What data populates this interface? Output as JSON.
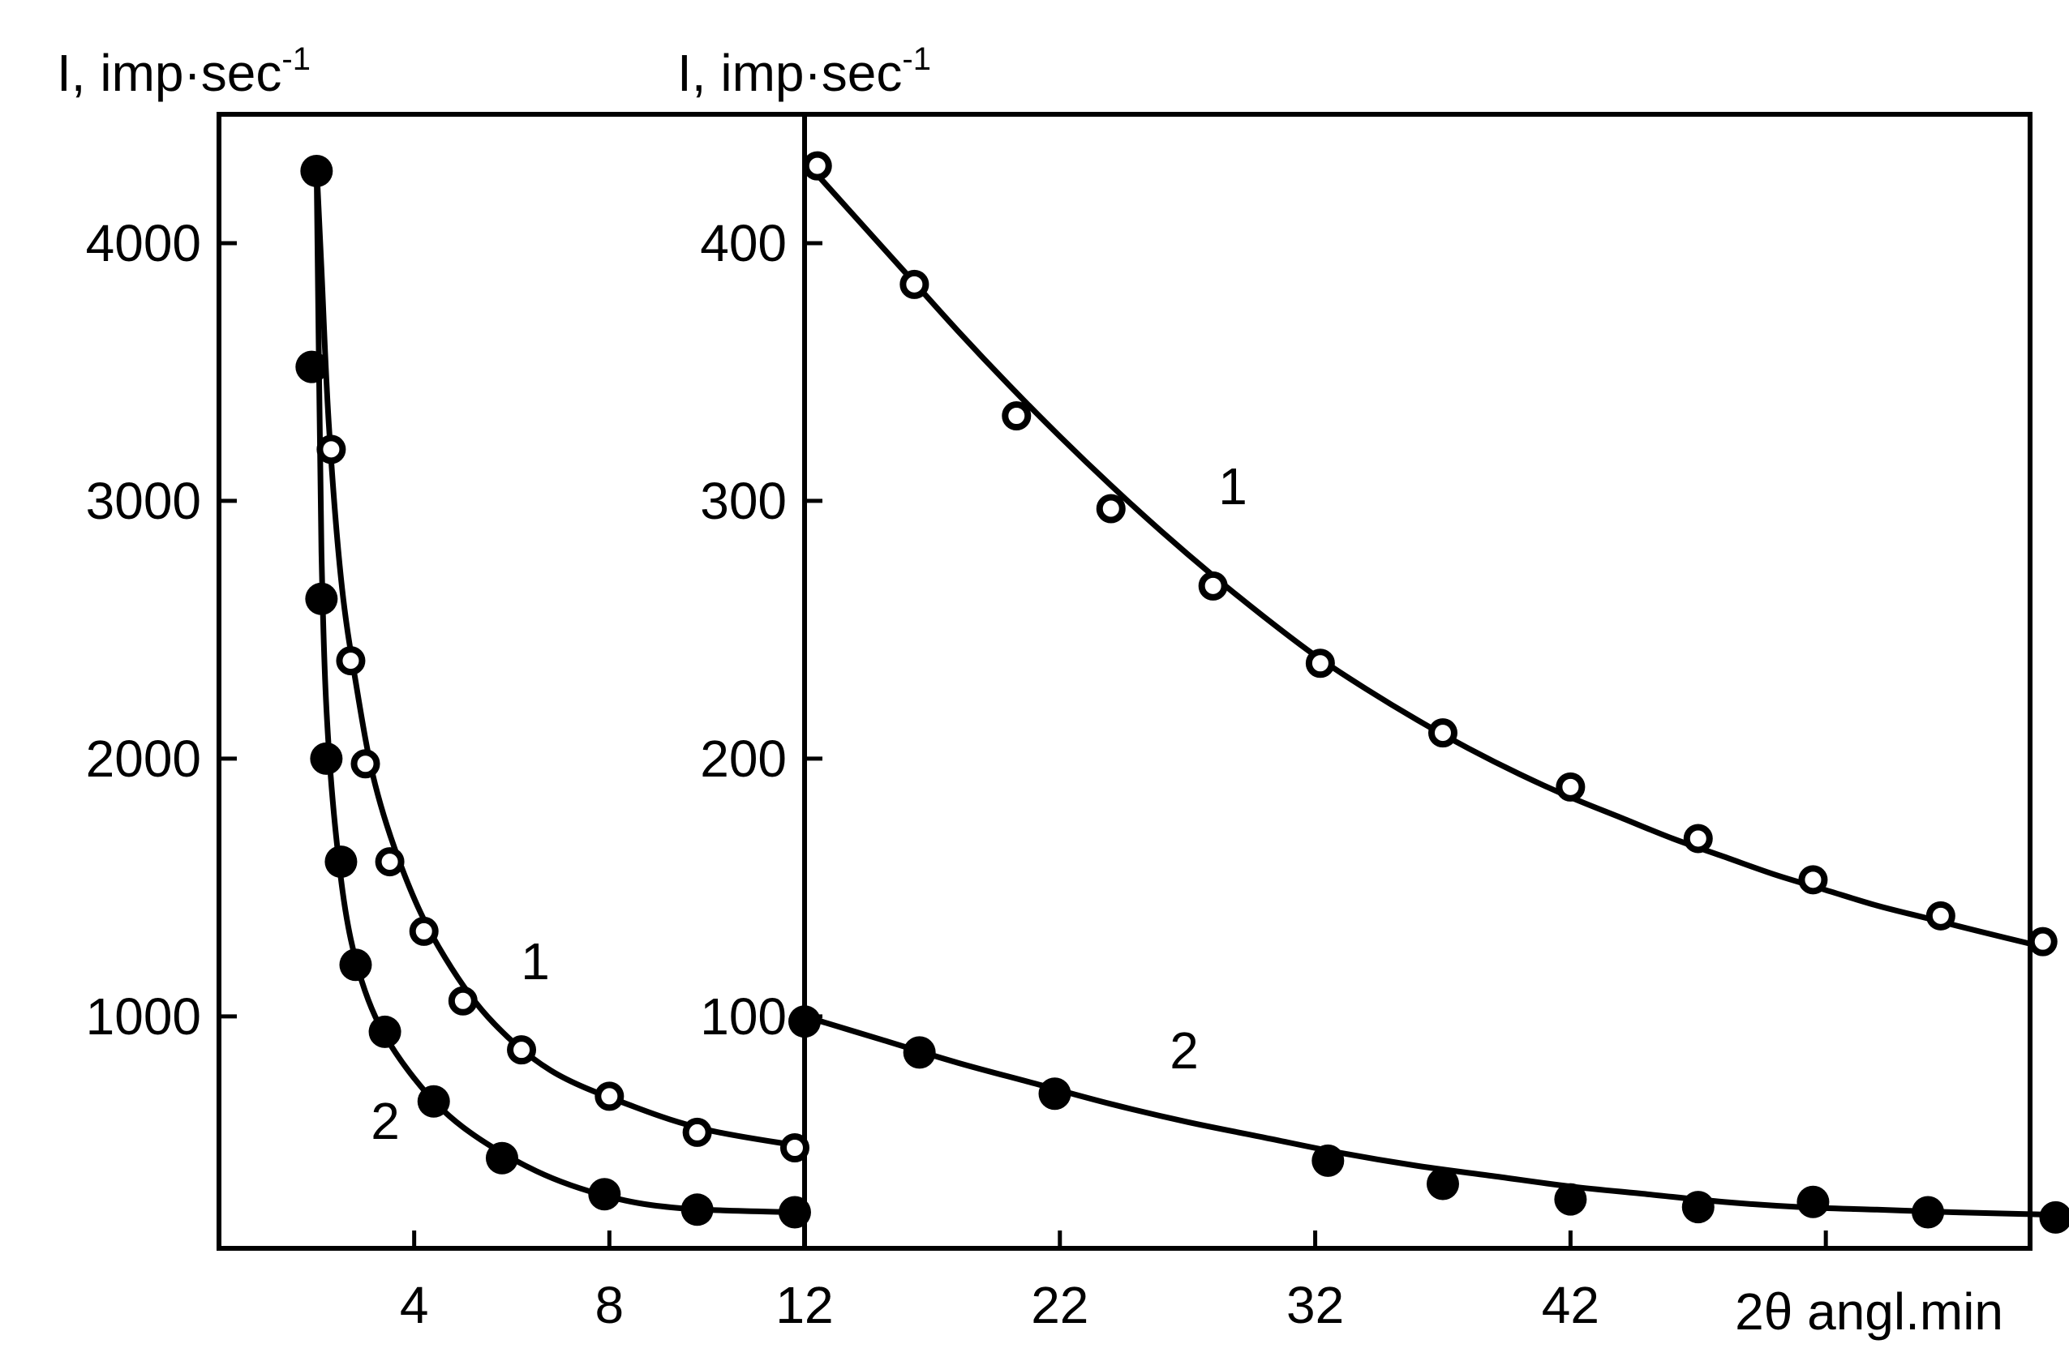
{
  "chart_data": [
    {
      "type": "scatter",
      "panel": "left",
      "title": "",
      "ylabel": "I, imp·sec",
      "ylabel_sup": "-1",
      "xlim": [
        0,
        12
      ],
      "ylim": [
        100,
        4500
      ],
      "x_ticks": [
        4,
        8,
        12
      ],
      "x_tick_labels": [
        "4",
        "8",
        "12"
      ],
      "y_ticks": [
        1000,
        2000,
        3000,
        4000
      ],
      "y_tick_labels": [
        "1000",
        "2000",
        "3000",
        "4000"
      ],
      "grid": false,
      "series": [
        {
          "label": "1",
          "marker": "open-circle",
          "points": [
            [
              2.3,
              3200
            ],
            [
              2.7,
              2380
            ],
            [
              3.0,
              1980
            ],
            [
              3.5,
              1600
            ],
            [
              4.2,
              1330
            ],
            [
              5.0,
              1060
            ],
            [
              6.2,
              870
            ],
            [
              8.0,
              690
            ],
            [
              9.8,
              550
            ],
            [
              11.8,
              490
            ]
          ],
          "curve": [
            [
              2.0,
              4300
            ],
            [
              2.1,
              3900
            ],
            [
              2.25,
              3300
            ],
            [
              2.5,
              2700
            ],
            [
              2.8,
              2300
            ],
            [
              3.2,
              1900
            ],
            [
              3.8,
              1550
            ],
            [
              4.5,
              1270
            ],
            [
              5.5,
              1000
            ],
            [
              6.8,
              790
            ],
            [
              8.5,
              650
            ],
            [
              10.0,
              560
            ],
            [
              11.8,
              500
            ]
          ]
        },
        {
          "label": "2",
          "marker": "filled-circle",
          "points": [
            [
              2.0,
              4280
            ],
            [
              1.9,
              3520
            ],
            [
              2.1,
              2620
            ],
            [
              2.2,
              2000
            ],
            [
              2.5,
              1600
            ],
            [
              2.8,
              1200
            ],
            [
              3.4,
              940
            ],
            [
              4.4,
              670
            ],
            [
              5.8,
              450
            ],
            [
              7.9,
              310
            ],
            [
              9.8,
              250
            ],
            [
              11.8,
              240
            ]
          ],
          "curve": [
            [
              2.0,
              4300
            ],
            [
              2.05,
              3500
            ],
            [
              2.1,
              2800
            ],
            [
              2.2,
              2200
            ],
            [
              2.4,
              1700
            ],
            [
              2.7,
              1300
            ],
            [
              3.2,
              1000
            ],
            [
              4.0,
              760
            ],
            [
              5.0,
              570
            ],
            [
              6.5,
              400
            ],
            [
              8.0,
              300
            ],
            [
              9.5,
              255
            ],
            [
              11.8,
              240
            ]
          ]
        }
      ]
    },
    {
      "type": "scatter",
      "panel": "right",
      "title": "",
      "xlabel": "2θ angl.min",
      "ylabel": "I, imp·sec",
      "ylabel_sup": "-1",
      "xlim": [
        12,
        60
      ],
      "ylim": [
        10,
        450
      ],
      "x_ticks": [
        12,
        22,
        32,
        42,
        52
      ],
      "x_tick_labels": [
        "12",
        "22",
        "32",
        "42",
        ""
      ],
      "y_ticks": [
        100,
        200,
        300,
        400
      ],
      "y_tick_labels": [
        "100",
        "200",
        "300",
        "400"
      ],
      "grid": false,
      "series": [
        {
          "label": "1",
          "marker": "open-circle",
          "points": [
            [
              12.5,
              430
            ],
            [
              16.3,
              384
            ],
            [
              20.3,
              333
            ],
            [
              24.0,
              297
            ],
            [
              28.0,
              267
            ],
            [
              32.2,
              237
            ],
            [
              37.0,
              210
            ],
            [
              42.0,
              189
            ],
            [
              47.0,
              169
            ],
            [
              51.5,
              153
            ],
            [
              56.5,
              139
            ],
            [
              60.5,
              129
            ]
          ],
          "curve": [
            [
              12.0,
              432
            ],
            [
              14.0,
              410
            ],
            [
              16.0,
              388
            ],
            [
              18.0,
              366
            ],
            [
              20.0,
              345
            ],
            [
              22.0,
              325
            ],
            [
              24.0,
              306
            ],
            [
              26.0,
              288
            ],
            [
              28.0,
              271
            ],
            [
              30.0,
              255
            ],
            [
              32.0,
              240
            ],
            [
              34.0,
              227
            ],
            [
              36.0,
              215
            ],
            [
              38.0,
              204
            ],
            [
              40.0,
              194
            ],
            [
              42.0,
              185
            ],
            [
              44.0,
              177
            ],
            [
              46.0,
              169
            ],
            [
              48.0,
              162
            ],
            [
              50.0,
              155
            ],
            [
              52.0,
              149
            ],
            [
              54.0,
              143
            ],
            [
              56.0,
              138
            ],
            [
              58.0,
              133
            ],
            [
              60.5,
              127
            ]
          ]
        },
        {
          "label": "2",
          "marker": "filled-circle",
          "points": [
            [
              12.0,
              98
            ],
            [
              16.5,
              86
            ],
            [
              21.8,
              70
            ],
            [
              32.5,
              44
            ],
            [
              37.0,
              35
            ],
            [
              42.0,
              29
            ],
            [
              47.0,
              26
            ],
            [
              51.5,
              28
            ],
            [
              56.0,
              24
            ],
            [
              61.0,
              22
            ]
          ],
          "curve": [
            [
              12.0,
              100
            ],
            [
              15.0,
              91
            ],
            [
              18.0,
              82
            ],
            [
              21.0,
              74
            ],
            [
              24.0,
              66
            ],
            [
              27.0,
              59
            ],
            [
              30.0,
              53
            ],
            [
              33.0,
              47
            ],
            [
              36.0,
              42
            ],
            [
              39.0,
              38
            ],
            [
              42.0,
              34
            ],
            [
              45.0,
              31
            ],
            [
              48.0,
              28
            ],
            [
              51.0,
              26
            ],
            [
              54.0,
              25
            ],
            [
              57.0,
              24
            ],
            [
              61.0,
              23
            ]
          ]
        }
      ]
    }
  ]
}
